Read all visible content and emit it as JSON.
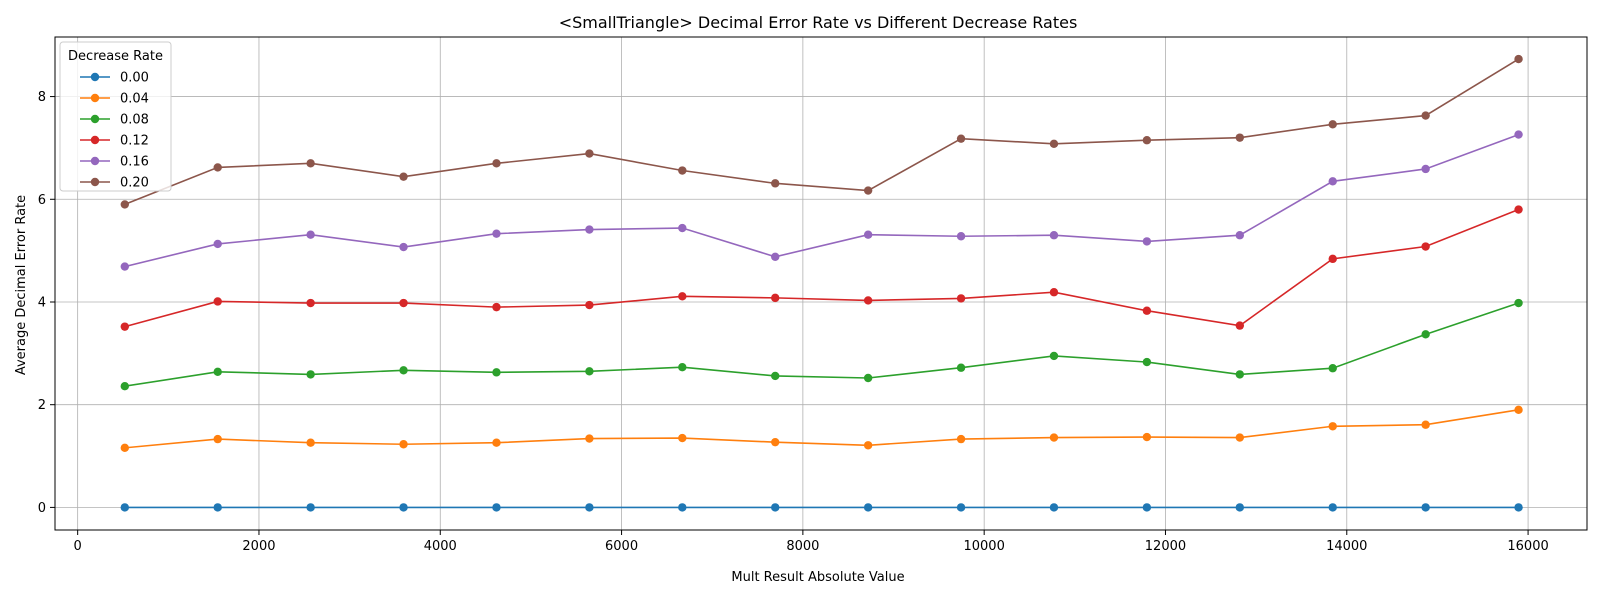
{
  "chart_data": {
    "type": "line",
    "title": "<SmallTriangle> Decimal Error Rate vs Different Decrease Rates",
    "xlabel": "Mult Result Absolute Value",
    "ylabel": "Average Decimal Error Rate",
    "xlim": [
      -250,
      16650
    ],
    "ylim": [
      -0.44,
      9.16
    ],
    "xticks": [
      0,
      2000,
      4000,
      6000,
      8000,
      10000,
      12000,
      14000,
      16000
    ],
    "yticks": [
      0,
      2,
      4,
      6,
      8
    ],
    "grid": true,
    "legend": {
      "title": "Decrease Rate",
      "placement": "top-left"
    },
    "x": [
      520,
      1545,
      2570,
      3595,
      4620,
      5645,
      6670,
      7695,
      8720,
      9745,
      10770,
      11795,
      12820,
      13845,
      14870,
      15895
    ],
    "series": [
      {
        "name": "0.00",
        "color": "#1f77b4",
        "values": [
          0,
          0,
          0,
          0,
          0,
          0,
          0,
          0,
          0,
          0,
          0,
          0,
          0,
          0,
          0,
          0
        ]
      },
      {
        "name": "0.04",
        "color": "#ff7f0e",
        "values": [
          1.16,
          1.33,
          1.26,
          1.23,
          1.26,
          1.34,
          1.35,
          1.27,
          1.21,
          1.33,
          1.36,
          1.37,
          1.36,
          1.58,
          1.61,
          1.9
        ]
      },
      {
        "name": "0.08",
        "color": "#2ca02c",
        "values": [
          2.36,
          2.64,
          2.59,
          2.67,
          2.63,
          2.65,
          2.73,
          2.56,
          2.52,
          2.72,
          2.95,
          2.83,
          2.59,
          2.71,
          3.37,
          3.98
        ]
      },
      {
        "name": "0.12",
        "color": "#d62728",
        "values": [
          3.52,
          4.01,
          3.98,
          3.98,
          3.9,
          3.94,
          4.11,
          4.08,
          4.03,
          4.07,
          4.19,
          3.83,
          3.54,
          4.84,
          5.08,
          5.8
        ]
      },
      {
        "name": "0.16",
        "color": "#9467bd",
        "values": [
          4.69,
          5.13,
          5.31,
          5.07,
          5.33,
          5.41,
          5.44,
          4.88,
          5.31,
          5.28,
          5.3,
          5.18,
          5.3,
          6.35,
          6.59,
          7.26
        ]
      },
      {
        "name": "0.20",
        "color": "#8c564b",
        "values": [
          5.9,
          6.62,
          6.7,
          6.44,
          6.7,
          6.89,
          6.56,
          6.31,
          6.17,
          7.18,
          7.08,
          7.15,
          7.2,
          7.46,
          7.63,
          8.73
        ]
      }
    ]
  }
}
